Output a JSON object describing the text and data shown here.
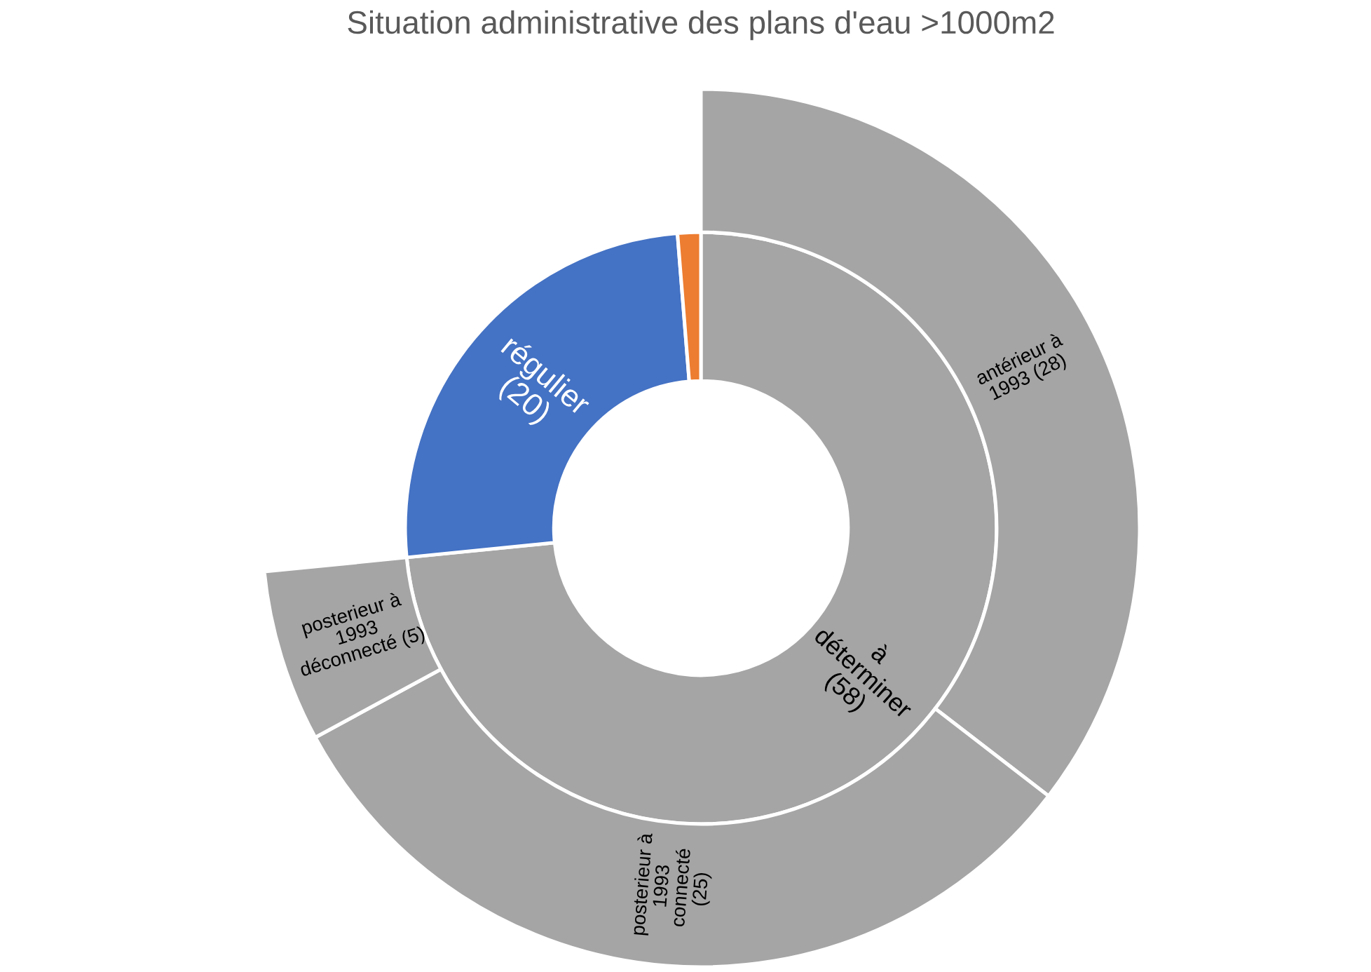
{
  "chart_data": {
    "type": "donut",
    "title": "Situation administrative des plans d'eau >1000m2",
    "series": [
      {
        "values": [
          58,
          20,
          1
        ],
        "value_labels": [
          "à\ndéterminer\n(58)",
          "régulier\n(20)",
          null
        ],
        "colors": [
          "#a5a5a5",
          "#4472c4",
          "#ed7d31"
        ]
      },
      {
        "values": [
          28,
          25,
          5
        ],
        "value_labels": [
          "antérieur à\n1993 (28)",
          "posterieur à\n1993\nconnecté\n(25)",
          "posterieur à\n1993\ndéconnecté (5)"
        ],
        "colors": [
          "#a5a5a5",
          "#a5a5a5",
          "#a5a5a5"
        ]
      }
    ]
  }
}
